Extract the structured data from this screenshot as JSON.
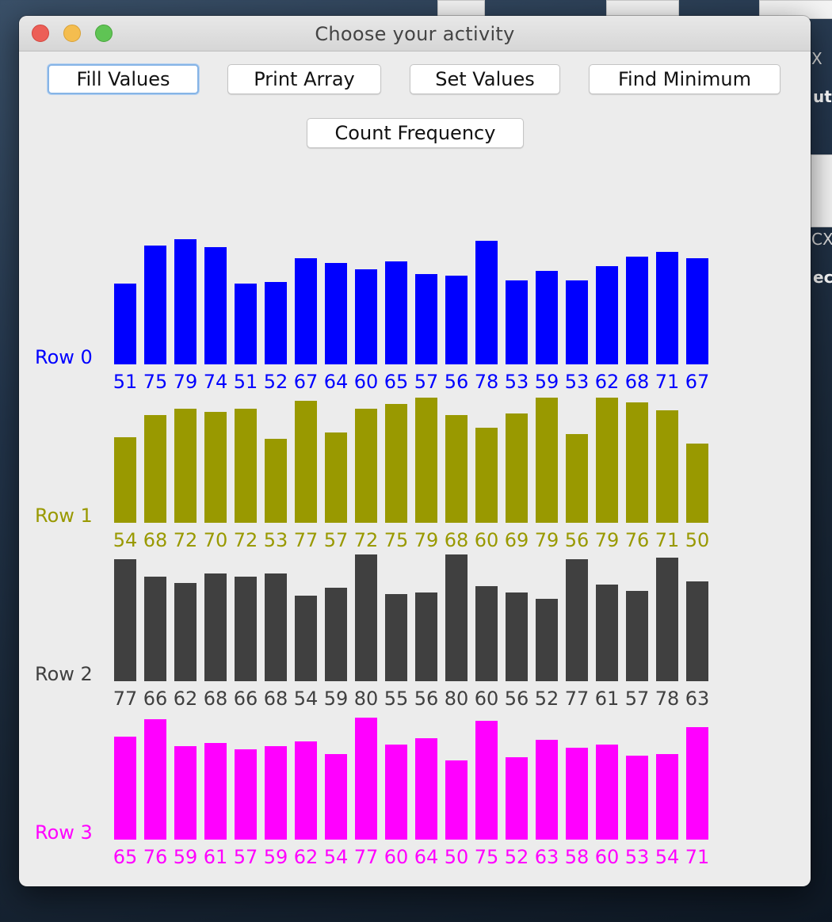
{
  "window": {
    "title": "Choose your activity"
  },
  "toolbar": {
    "fill_values": "Fill Values",
    "print_array": "Print Array",
    "set_values": "Set Values",
    "find_minimum": "Find Minimum",
    "count_frequency": "Count Frequency"
  },
  "desktop": {
    "frag_1": "utl",
    "frag_2": "ec,",
    "frag_3": "X",
    "frag_4": "CX"
  },
  "chart_data": {
    "type": "bar",
    "rows": [
      {
        "name": "Row 0",
        "color": "#0000ff",
        "values": [
          51,
          75,
          79,
          74,
          51,
          52,
          67,
          64,
          60,
          65,
          57,
          56,
          78,
          53,
          59,
          53,
          62,
          68,
          71,
          67
        ]
      },
      {
        "name": "Row 1",
        "color": "#999900",
        "values": [
          54,
          68,
          72,
          70,
          72,
          53,
          77,
          57,
          72,
          75,
          79,
          68,
          60,
          69,
          79,
          56,
          79,
          76,
          71,
          50
        ]
      },
      {
        "name": "Row 2",
        "color": "#404040",
        "values": [
          77,
          66,
          62,
          68,
          66,
          68,
          54,
          59,
          80,
          55,
          56,
          80,
          60,
          56,
          52,
          77,
          61,
          57,
          78,
          63
        ]
      },
      {
        "name": "Row 3",
        "color": "#ff00ff",
        "values": [
          65,
          76,
          59,
          61,
          57,
          59,
          62,
          54,
          77,
          60,
          64,
          50,
          75,
          52,
          63,
          58,
          60,
          53,
          54,
          71
        ]
      }
    ]
  }
}
